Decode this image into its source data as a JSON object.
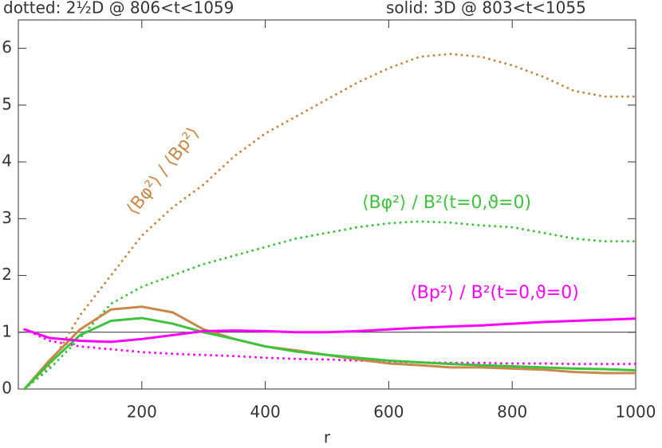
{
  "chart_data": {
    "type": "line",
    "title_parts": [
      "dotted: 2½D @ 806<t<1059",
      "solid: 3D @ 803<t<1055"
    ],
    "xlabel": "r",
    "x": [
      10,
      50,
      100,
      150,
      200,
      250,
      300,
      350,
      400,
      450,
      500,
      550,
      600,
      650,
      700,
      750,
      800,
      850,
      900,
      950,
      1000
    ],
    "series": [
      {
        "color": "#c8884a",
        "style": "dotted",
        "values": [
          0,
          0.4,
          1.3,
          2.0,
          2.7,
          3.2,
          3.6,
          4.1,
          4.5,
          4.8,
          5.1,
          5.4,
          5.65,
          5.85,
          5.9,
          5.85,
          5.7,
          5.5,
          5.25,
          5.15,
          5.15
        ]
      },
      {
        "color": "#3ec23e",
        "style": "dotted",
        "values": [
          0,
          0.35,
          0.9,
          1.5,
          1.8,
          2.0,
          2.2,
          2.35,
          2.5,
          2.65,
          2.75,
          2.85,
          2.92,
          2.95,
          2.93,
          2.88,
          2.85,
          2.75,
          2.65,
          2.6,
          2.6
        ]
      },
      {
        "color": "#ff00ff",
        "style": "dotted",
        "values": [
          1.05,
          0.85,
          0.75,
          0.7,
          0.65,
          0.62,
          0.6,
          0.58,
          0.55,
          0.53,
          0.52,
          0.5,
          0.48,
          0.47,
          0.46,
          0.46,
          0.45,
          0.45,
          0.44,
          0.44,
          0.44
        ]
      },
      {
        "color": "#c8884a",
        "style": "solid",
        "values": [
          0,
          0.5,
          1.05,
          1.4,
          1.45,
          1.35,
          1.05,
          0.88,
          0.75,
          0.68,
          0.6,
          0.52,
          0.45,
          0.42,
          0.38,
          0.38,
          0.36,
          0.34,
          0.3,
          0.28,
          0.28
        ]
      },
      {
        "color": "#3ec23e",
        "style": "solid",
        "values": [
          0,
          0.45,
          0.95,
          1.2,
          1.25,
          1.15,
          1.0,
          0.88,
          0.75,
          0.66,
          0.6,
          0.55,
          0.5,
          0.47,
          0.44,
          0.42,
          0.4,
          0.38,
          0.36,
          0.35,
          0.33
        ]
      },
      {
        "color": "#ff00ff",
        "style": "solid",
        "values": [
          1.05,
          0.9,
          0.85,
          0.83,
          0.88,
          0.95,
          1.02,
          1.03,
          1.02,
          1.0,
          1.0,
          1.02,
          1.05,
          1.08,
          1.1,
          1.12,
          1.15,
          1.18,
          1.2,
          1.22,
          1.24
        ]
      }
    ],
    "annotations": [
      {
        "text": "⟨Bφ²⟩ / ⟨Bp²⟩",
        "color": "#c8884a"
      },
      {
        "text": "⟨Bφ²⟩ / B²(t=0,ϑ=0)",
        "color": "#3ec23e"
      },
      {
        "text": "⟨Bp²⟩ / B²(t=0,ϑ=0)",
        "color": "#ff00ff"
      }
    ],
    "hlines": [
      1
    ],
    "xlim": [
      0,
      1000
    ],
    "xticks": [
      200,
      400,
      600,
      800,
      1000
    ],
    "ylim": [
      0,
      6.5
    ],
    "yticks": [
      0,
      1,
      2,
      3,
      4,
      5,
      6
    ]
  }
}
